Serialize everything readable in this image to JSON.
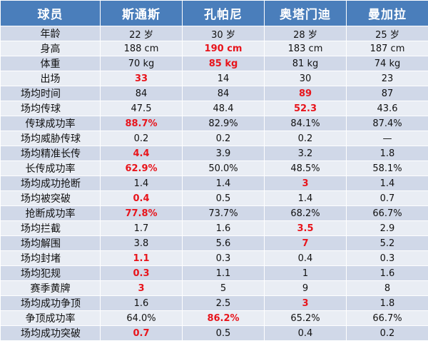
{
  "header": [
    "球员",
    "斯通斯",
    "孔帕尼",
    "奥塔门迪",
    "曼加拉"
  ],
  "highlight_color": "#e8141b",
  "header_color": "#4a7ebb",
  "rows": [
    {
      "label": "年龄",
      "centered": true,
      "values": [
        "22 岁",
        "30 岁",
        "28 岁",
        "25 岁"
      ],
      "highlight": []
    },
    {
      "label": "身高",
      "centered": true,
      "values": [
        "188 cm",
        "190 cm",
        "183 cm",
        "187 cm"
      ],
      "highlight": [
        1
      ]
    },
    {
      "label": "体重",
      "centered": true,
      "values": [
        "70 kg",
        "85 kg",
        "81 kg",
        "74 kg"
      ],
      "highlight": [
        1
      ]
    },
    {
      "label": "出场",
      "centered": true,
      "values": [
        "33",
        "14",
        "30",
        "23"
      ],
      "highlight": [
        0
      ]
    },
    {
      "label": "场均时间",
      "centered": false,
      "values": [
        "84",
        "84",
        "89",
        "87"
      ],
      "highlight": [
        2
      ]
    },
    {
      "label": "场均传球",
      "centered": false,
      "values": [
        "47.5",
        "48.4",
        "52.3",
        "43.6"
      ],
      "highlight": [
        2
      ]
    },
    {
      "label": "传球成功率",
      "centered": true,
      "values": [
        "88.7%",
        "82.9%",
        "84.1%",
        "87.4%"
      ],
      "highlight": [
        0
      ]
    },
    {
      "label": "场均威胁传球",
      "centered": false,
      "values": [
        "0.2",
        "0.2",
        "0.2",
        "—"
      ],
      "highlight": []
    },
    {
      "label": "场均精准长传",
      "centered": false,
      "values": [
        "4.4",
        "3.9",
        "3.2",
        "1.8"
      ],
      "highlight": [
        0
      ]
    },
    {
      "label": "长传成功率",
      "centered": true,
      "values": [
        "62.9%",
        "50.0%",
        "48.5%",
        "58.1%"
      ],
      "highlight": [
        0
      ]
    },
    {
      "label": "场均成功抢断",
      "centered": false,
      "values": [
        "1.4",
        "1.4",
        "3",
        "1.4"
      ],
      "highlight": [
        2
      ]
    },
    {
      "label": "场均被突破",
      "centered": false,
      "values": [
        "0.4",
        "0.5",
        "1.4",
        "0.7"
      ],
      "highlight": [
        0
      ]
    },
    {
      "label": "抢断成功率",
      "centered": true,
      "values": [
        "77.8%",
        "73.7%",
        "68.2%",
        "66.7%"
      ],
      "highlight": [
        0
      ]
    },
    {
      "label": "场均拦截",
      "centered": false,
      "values": [
        "1.7",
        "1.6",
        "3.5",
        "2.9"
      ],
      "highlight": [
        2
      ]
    },
    {
      "label": "场均解围",
      "centered": false,
      "values": [
        "3.8",
        "5.6",
        "7",
        "5.2"
      ],
      "highlight": [
        2
      ]
    },
    {
      "label": "场均封堵",
      "centered": false,
      "values": [
        "1.1",
        "0.3",
        "0.4",
        "0.3"
      ],
      "highlight": [
        0
      ]
    },
    {
      "label": "场均犯规",
      "centered": false,
      "values": [
        "0.3",
        "1.1",
        "1",
        "1.6"
      ],
      "highlight": [
        0
      ]
    },
    {
      "label": "赛季黄牌",
      "centered": true,
      "values": [
        "3",
        "5",
        "9",
        "8"
      ],
      "highlight": [
        0
      ]
    },
    {
      "label": "场均成功争顶",
      "centered": false,
      "values": [
        "1.6",
        "2.5",
        "3",
        "1.8"
      ],
      "highlight": [
        2
      ]
    },
    {
      "label": "争顶成功率",
      "centered": true,
      "values": [
        "64.0%",
        "86.2%",
        "65.2%",
        "66.7%"
      ],
      "highlight": [
        1
      ]
    },
    {
      "label": "场均成功突破",
      "centered": false,
      "values": [
        "0.7",
        "0.5",
        "0.4",
        "0.2"
      ],
      "highlight": [
        0
      ]
    }
  ]
}
